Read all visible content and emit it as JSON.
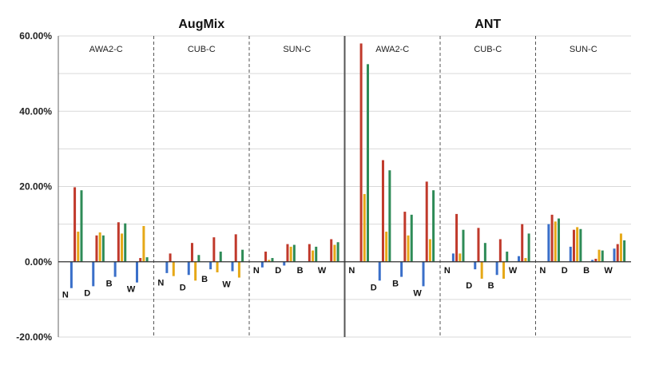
{
  "chart_data": {
    "type": "bar",
    "ylim": [
      -20,
      60
    ],
    "y_ticks": [
      "60.00%",
      "40.00%",
      "20.00%",
      "0.00%",
      "-20.00%"
    ],
    "grid": true,
    "colors": {
      "blue": "#3a6fc9",
      "red": "#c0392b",
      "yellow": "#e6a817",
      "green": "#2e8b57"
    },
    "panels": [
      {
        "title": "AugMix",
        "datasets": [
          {
            "name": "AWA2-C",
            "groups": [
              {
                "label": "N",
                "values": [
                  -7.0,
                  19.8,
                  8.0,
                  19.0
                ]
              },
              {
                "label": "D",
                "values": [
                  -6.5,
                  7.0,
                  7.8,
                  7.0
                ]
              },
              {
                "label": "B",
                "values": [
                  -4.0,
                  10.5,
                  7.5,
                  10.2
                ]
              },
              {
                "label": "W",
                "values": [
                  -5.5,
                  1.0,
                  9.5,
                  1.2
                ]
              }
            ]
          },
          {
            "name": "CUB-C",
            "groups": [
              {
                "label": "N",
                "values": [
                  -3.0,
                  2.2,
                  -3.8,
                  0.0
                ]
              },
              {
                "label": "D",
                "values": [
                  -3.5,
                  5.0,
                  -5.0,
                  1.8
                ]
              },
              {
                "label": "B",
                "values": [
                  -2.0,
                  6.5,
                  -2.8,
                  2.7
                ]
              },
              {
                "label": "W",
                "values": [
                  -2.5,
                  7.3,
                  -4.2,
                  3.2
                ]
              }
            ]
          },
          {
            "name": "SUN-C",
            "groups": [
              {
                "label": "N",
                "values": [
                  -1.5,
                  2.7,
                  0.5,
                  1.0
                ]
              },
              {
                "label": "D",
                "values": [
                  -1.0,
                  4.7,
                  4.0,
                  4.5
                ]
              },
              {
                "label": "B",
                "values": [
                  0.0,
                  4.7,
                  3.0,
                  4.0
                ]
              },
              {
                "label": "W",
                "values": [
                  0.0,
                  6.0,
                  4.5,
                  5.2
                ]
              }
            ]
          }
        ]
      },
      {
        "title": "ANT",
        "datasets": [
          {
            "name": "AWA2-C",
            "groups": [
              {
                "label": "N",
                "values": [
                  0.0,
                  58.0,
                  18.0,
                  52.5
                ]
              },
              {
                "label": "D",
                "values": [
                  -5.0,
                  27.0,
                  8.0,
                  24.3
                ]
              },
              {
                "label": "B",
                "values": [
                  -4.0,
                  13.3,
                  7.0,
                  12.5
                ]
              },
              {
                "label": "W",
                "values": [
                  -6.5,
                  21.3,
                  6.0,
                  19.0
                ]
              }
            ]
          },
          {
            "name": "CUB-C",
            "groups": [
              {
                "label": "N",
                "values": [
                  2.2,
                  12.7,
                  2.2,
                  8.5
                ]
              },
              {
                "label": "D",
                "values": [
                  -2.0,
                  9.0,
                  -4.5,
                  5.0
                ]
              },
              {
                "label": "B",
                "values": [
                  -3.5,
                  6.0,
                  -4.5,
                  2.7
                ]
              },
              {
                "label": "W",
                "values": [
                  1.5,
                  10.0,
                  1.0,
                  7.5
                ]
              }
            ]
          },
          {
            "name": "SUN-C",
            "groups": [
              {
                "label": "N",
                "values": [
                  10.0,
                  12.5,
                  10.7,
                  11.5
                ]
              },
              {
                "label": "D",
                "values": [
                  4.0,
                  8.5,
                  9.2,
                  8.7
                ]
              },
              {
                "label": "B",
                "values": [
                  0.5,
                  0.8,
                  3.2,
                  3.0
                ]
              },
              {
                "label": "W",
                "values": [
                  3.5,
                  4.7,
                  7.5,
                  5.7
                ]
              }
            ]
          }
        ]
      }
    ]
  }
}
